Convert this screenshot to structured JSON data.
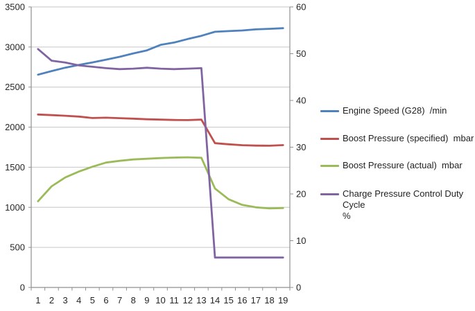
{
  "chart_data": {
    "type": "line",
    "title": "",
    "categories": [
      1,
      2,
      3,
      4,
      5,
      6,
      7,
      8,
      9,
      10,
      11,
      12,
      13,
      14,
      15,
      16,
      17,
      18,
      19
    ],
    "x_axis": {
      "labels": [
        "1",
        "2",
        "3",
        "4",
        "5",
        "6",
        "7",
        "8",
        "9",
        "10",
        "11",
        "12",
        "13",
        "14",
        "15",
        "16",
        "17",
        "18",
        "19"
      ]
    },
    "left_axis": {
      "min": 0,
      "max": 3500,
      "step": 500
    },
    "right_axis": {
      "min": 0,
      "max": 60,
      "step": 10
    },
    "grid": true,
    "legend_position": "right",
    "series": [
      {
        "name": "Engine Speed (G28)  /min",
        "legend_label": "Engine Speed (G28)  /min",
        "color": "#4F81BD",
        "axis": "left",
        "values": [
          2655,
          2700,
          2742,
          2776,
          2808,
          2842,
          2878,
          2920,
          2958,
          3026,
          3056,
          3100,
          3140,
          3190,
          3198,
          3206,
          3220,
          3227,
          3235
        ]
      },
      {
        "name": "Boost Pressure (specified)  mbar",
        "legend_label": "Boost Pressure (specified)  mbar",
        "color": "#C0504D",
        "axis": "left",
        "values": [
          2158,
          2150,
          2142,
          2132,
          2114,
          2118,
          2112,
          2106,
          2098,
          2094,
          2090,
          2088,
          2094,
          1800,
          1786,
          1775,
          1770,
          1768,
          1776
        ]
      },
      {
        "name": "Boost Pressure (actual)  mbar",
        "legend_label": "Boost Pressure (actual)  mbar",
        "color": "#9BBB59",
        "axis": "left",
        "values": [
          1075,
          1262,
          1372,
          1446,
          1506,
          1558,
          1580,
          1597,
          1606,
          1614,
          1620,
          1624,
          1618,
          1235,
          1100,
          1030,
          1000,
          986,
          991
        ]
      },
      {
        "name": "Charge Pressure Control Duty Cycle %",
        "legend_label": "Charge Pressure Control Duty Cycle\n%",
        "color": "#8064A2",
        "axis": "right",
        "values": [
          51.0,
          48.5,
          48.1,
          47.5,
          47.2,
          46.9,
          46.7,
          46.8,
          47.0,
          46.8,
          46.7,
          46.8,
          46.9,
          6.4,
          6.4,
          6.4,
          6.4,
          6.4,
          6.4
        ]
      }
    ],
    "colors": {
      "background": "#FFFFFF",
      "gridline": "#C6C6C6",
      "axis": "#8F8F8F",
      "text": "#262626"
    }
  }
}
